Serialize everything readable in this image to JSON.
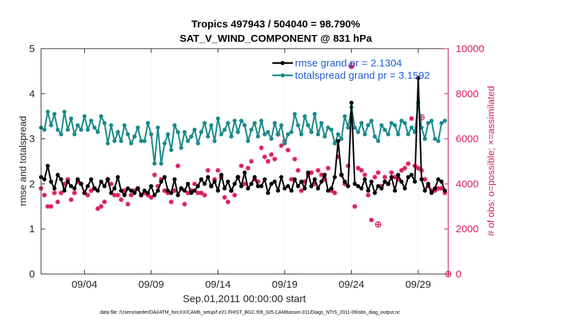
{
  "chart_data": {
    "type": "line",
    "title_line1": "Tropics 497943 / 504040 = 98.790%",
    "title_line2": "SAT_V_WIND_COMPONENT @ 831 hPa",
    "xlabel": "Sep.01,2011 00:00:00 start",
    "ylabel_left": "rmse and totalspread",
    "ylabel_right": "# of obs: o=possible; ×=assimilated",
    "footer": "data file: /Users/raeder/DAI/ATM_forcXX/CAM6_setup/f.e21.FHIST_BGC.f09_025.CAM6assim.011/Diags_NTrS_2011-09/obs_diag_output.nc",
    "x_range_days": [
      0.25,
      30.75
    ],
    "x_ticks": [
      {
        "label": "09/04",
        "day": 3.5
      },
      {
        "label": "09/09",
        "day": 8.5
      },
      {
        "label": "09/14",
        "day": 13.5
      },
      {
        "label": "09/19",
        "day": 18.5
      },
      {
        "label": "09/24",
        "day": 23.5
      },
      {
        "label": "09/29",
        "day": 28.5
      }
    ],
    "ylim_left": [
      0,
      5
    ],
    "yticks_left": [
      "0",
      "1",
      "2",
      "3",
      "4",
      "5"
    ],
    "ylim_right": [
      0,
      10000
    ],
    "yticks_right": [
      "0",
      "2000",
      "4000",
      "6000",
      "8000",
      "10000"
    ],
    "legend": [
      {
        "label": "rmse grand pr = 2.1304",
        "color": "#000000"
      },
      {
        "label": "totalspread grand pr = 3.1592",
        "color": "#1a8a8a"
      }
    ],
    "x_days": [
      0.25,
      0.5,
      0.75,
      1.0,
      1.25,
      1.5,
      1.75,
      2.0,
      2.25,
      2.5,
      2.75,
      3.0,
      3.25,
      3.5,
      3.75,
      4.0,
      4.25,
      4.5,
      4.75,
      5.0,
      5.25,
      5.5,
      5.75,
      6.0,
      6.25,
      6.5,
      6.75,
      7.0,
      7.25,
      7.5,
      7.75,
      8.0,
      8.25,
      8.5,
      8.75,
      9.0,
      9.25,
      9.5,
      9.75,
      10.0,
      10.25,
      10.5,
      10.75,
      11.0,
      11.25,
      11.5,
      11.75,
      12.0,
      12.25,
      12.5,
      12.75,
      13.0,
      13.25,
      13.5,
      13.75,
      14.0,
      14.25,
      14.5,
      14.75,
      15.0,
      15.25,
      15.5,
      15.75,
      16.0,
      16.25,
      16.5,
      16.75,
      17.0,
      17.25,
      17.5,
      17.75,
      18.0,
      18.25,
      18.5,
      18.75,
      19.0,
      19.25,
      19.5,
      19.75,
      20.0,
      20.25,
      20.5,
      20.75,
      21.0,
      21.25,
      21.5,
      21.75,
      22.0,
      22.25,
      22.5,
      22.75,
      23.0,
      23.25,
      23.5,
      23.75,
      24.0,
      24.25,
      24.5,
      24.75,
      25.0,
      25.25,
      25.5,
      25.75,
      26.0,
      26.25,
      26.5,
      26.75,
      27.0,
      27.25,
      27.5,
      27.75,
      28.0,
      28.25,
      28.5,
      28.75,
      29.0,
      29.25,
      29.5,
      29.75,
      30.0,
      30.25,
      30.5
    ],
    "series": [
      {
        "name": "rmse",
        "color": "#000000",
        "axis": "left",
        "values": [
          2.15,
          2.1,
          2.4,
          2.05,
          1.9,
          2.2,
          2.1,
          1.85,
          2.05,
          1.95,
          1.9,
          2.1,
          2.0,
          1.8,
          1.95,
          2.1,
          1.9,
          1.85,
          2.05,
          1.95,
          2.1,
          1.8,
          1.9,
          2.15,
          1.85,
          1.75,
          1.9,
          1.85,
          1.8,
          1.9,
          1.75,
          1.85,
          1.8,
          1.95,
          1.75,
          1.85,
          2.05,
          2.15,
          1.85,
          1.8,
          2.1,
          1.75,
          1.9,
          1.85,
          2.0,
          1.8,
          1.85,
          1.95,
          2.1,
          2.0,
          2.15,
          1.95,
          2.05,
          1.85,
          2.2,
          1.9,
          2.05,
          1.85,
          2.0,
          2.15,
          1.95,
          2.25,
          1.9,
          2.0,
          2.15,
          1.95,
          1.95,
          2.1,
          1.8,
          2.0,
          2.05,
          1.85,
          2.15,
          1.9,
          1.95,
          1.85,
          2.1,
          1.95,
          2.05,
          1.9,
          2.25,
          1.95,
          2.1,
          1.9,
          2.05,
          2.2,
          1.85,
          1.9,
          2.15,
          2.95,
          2.2,
          2.05,
          1.95,
          3.8,
          2.0,
          1.95,
          1.9,
          2.1,
          1.85,
          2.05,
          1.8,
          1.95,
          1.9,
          2.05,
          2.0,
          2.15,
          1.85,
          2.2,
          2.05,
          1.9,
          2.15,
          2.2,
          2.05,
          4.35,
          2.1,
          1.85,
          2.0,
          1.8,
          1.9,
          2.1,
          2.05,
          1.85
        ],
        "markers": "filled-circle"
      },
      {
        "name": "totalspread",
        "color": "#1a8a8a",
        "axis": "left",
        "values": [
          3.25,
          3.2,
          3.6,
          3.3,
          3.55,
          3.2,
          3.1,
          3.6,
          3.2,
          3.45,
          3.1,
          3.3,
          3.2,
          3.5,
          3.2,
          3.4,
          3.25,
          3.15,
          3.5,
          3.35,
          2.9,
          3.3,
          2.95,
          3.15,
          2.95,
          3.3,
          3.1,
          2.9,
          3.05,
          3.25,
          2.95,
          2.95,
          3.35,
          3.1,
          2.45,
          3.25,
          2.45,
          2.9,
          3.1,
          2.75,
          3.3,
          3.15,
          2.8,
          3.15,
          2.95,
          3.05,
          3.2,
          2.9,
          3.15,
          3.35,
          3.05,
          3.3,
          2.95,
          3.45,
          3.1,
          3.2,
          3.35,
          3.05,
          3.4,
          3.15,
          3.4,
          3.3,
          2.95,
          3.2,
          3.35,
          3.05,
          3.4,
          3.1,
          3.15,
          3.0,
          3.35,
          3.1,
          3.3,
          2.9,
          3.1,
          3.15,
          3.55,
          3.3,
          3.1,
          3.5,
          3.3,
          3.15,
          3.55,
          3.1,
          3.35,
          3.05,
          3.25,
          3.2,
          2.9,
          3.1,
          3.0,
          3.5,
          3.25,
          3.7,
          3.25,
          3.15,
          3.35,
          3.1,
          3.3,
          3.4,
          3.05,
          2.95,
          3.3,
          3.2,
          3.1,
          3.35,
          3.3,
          3.1,
          3.4,
          3.35,
          3.1,
          3.25,
          3.15,
          3.8,
          3.25,
          3.0,
          3.35,
          3.4,
          3.0,
          2.95,
          3.35,
          3.4
        ]
      },
      {
        "name": "obs assimilated",
        "color": "#d81b60",
        "axis": "right",
        "values": [
          3800,
          3500,
          3000,
          3000,
          3600,
          3200,
          3600,
          4000,
          4200,
          3300,
          3600,
          4100,
          4000,
          3600,
          3500,
          3700,
          3800,
          2900,
          3000,
          3200,
          4200,
          4000,
          3500,
          3500,
          3300,
          3700,
          3100,
          3500,
          3700,
          3800,
          3500,
          3600,
          3500,
          3400,
          4400,
          3900,
          4200,
          3700,
          3600,
          3200,
          3700,
          4800,
          3800,
          3100,
          3600,
          3700,
          4000,
          3600,
          3600,
          3500,
          4600,
          3900,
          4200,
          4600,
          4300,
          3400,
          3200,
          3700,
          3500,
          4300,
          4800,
          4000,
          4700,
          5000,
          4200,
          4100,
          5600,
          5200,
          5000,
          5300,
          5100,
          6200,
          5700,
          5900,
          5500,
          4200,
          5100,
          4600,
          3700,
          4100,
          4400,
          4500,
          4000,
          4600,
          4400,
          4200,
          4700,
          3700,
          3600,
          5200,
          4400,
          4000,
          4800,
          9200,
          3000,
          4700,
          4600,
          4400,
          3500,
          2400,
          4300,
          4500,
          3900,
          4300,
          4000,
          4500,
          4300,
          4200,
          4600,
          4700,
          4900,
          6900,
          4800,
          4700,
          4600,
          4200,
          3900,
          3700,
          3700,
          3800,
          3800,
          3600
        ]
      },
      {
        "name": "obs possible",
        "color": "#d81b60",
        "axis": "right",
        "points": [
          {
            "day": 23.5,
            "value": 9250
          },
          {
            "day": 25.5,
            "value": 2200
          },
          {
            "day": 28.75,
            "value": 6950
          },
          {
            "day": 30.75,
            "value": 0
          }
        ]
      }
    ]
  }
}
